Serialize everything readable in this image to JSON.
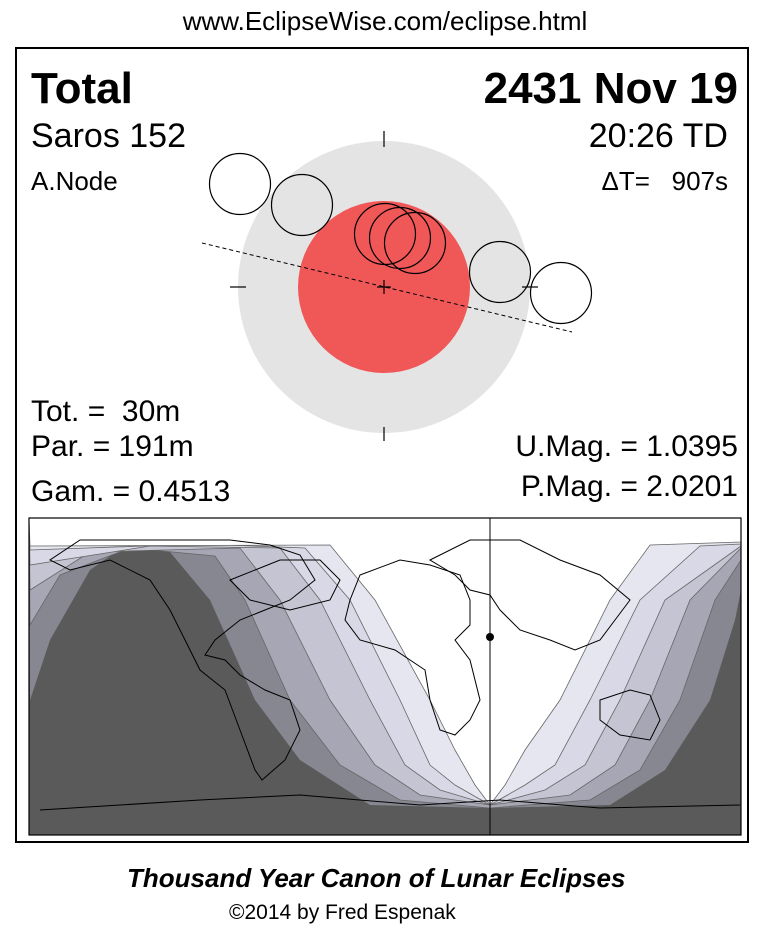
{
  "header": {
    "url": "www.EclipseWise.com/eclipse.html"
  },
  "eclipse": {
    "type": "Total",
    "date": "2431 Nov 19",
    "saros": "Saros 152",
    "node": "A.Node",
    "time": "20:26 TD",
    "delta_t": "ΔT=   907s",
    "tot": "Tot. =  30m",
    "par": "Par. = 191m",
    "gam": "Gam. = 0.4513",
    "umag": "U.Mag. = 1.0395",
    "pmag": "P.Mag. = 2.0201"
  },
  "colors": {
    "penumbra": "#e4e4e4",
    "umbra": "#f05858",
    "night": "#5a5a5a",
    "bands": [
      "#878792",
      "#a6a6b4",
      "#c4c4d2",
      "#d8d8e6",
      "#e6e6f1",
      "#ffffff"
    ]
  },
  "footer": {
    "title": "Thousand Year Canon of Lunar Eclipses",
    "copyright": "©2014 by Fred Espenak"
  }
}
